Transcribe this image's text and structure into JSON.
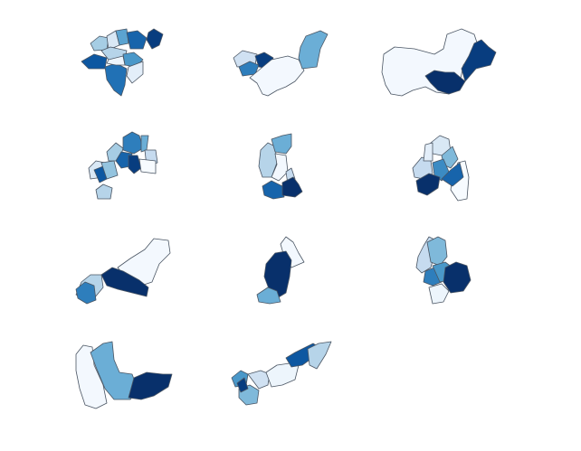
{
  "figure": {
    "colormap": "Blues",
    "scale_min": 0,
    "scale_max": 1,
    "edge_color": "#4a5563",
    "background": "#ffffff"
  },
  "panels": [
    {
      "id": "panel-1",
      "regions": [
        0.35,
        0.15,
        0.55,
        0.8,
        0.3,
        0.95,
        0.6,
        0.85,
        0.1,
        0.75,
        0.05
      ]
    },
    {
      "id": "panel-2",
      "regions": [
        0.2,
        0.7,
        0.95,
        0.02,
        0.5
      ]
    },
    {
      "id": "panel-3",
      "regions": [
        0.02,
        0.95,
        1.0
      ]
    },
    {
      "id": "panel-4",
      "regions": [
        0.35,
        0.7,
        0.5,
        0.25,
        0.8,
        0.95,
        0.0,
        0.15,
        0.85,
        0.4,
        0.3
      ]
    },
    {
      "id": "panel-5",
      "regions": [
        0.3,
        0.5,
        0.02,
        0.25,
        0.8,
        1.0
      ]
    },
    {
      "id": "panel-6",
      "regions": [
        0.25,
        0.15,
        0.45,
        0.65,
        0.0,
        0.8,
        0.1,
        1.0
      ]
    },
    {
      "id": "panel-7",
      "regions": [
        0.02,
        1.0,
        0.3,
        0.7
      ]
    },
    {
      "id": "panel-8",
      "regions": [
        0.02,
        1.0,
        0.5
      ]
    },
    {
      "id": "panel-9",
      "regions": [
        0.25,
        0.45,
        0.7,
        0.6,
        1.0,
        0.05
      ]
    },
    {
      "id": "panel-10",
      "regions": [
        0.02,
        0.5,
        1.0
      ]
    },
    {
      "id": "panel-11",
      "regions": [
        0.6,
        0.45,
        0.2,
        0.05,
        0.95,
        0.85,
        0.3
      ]
    }
  ]
}
